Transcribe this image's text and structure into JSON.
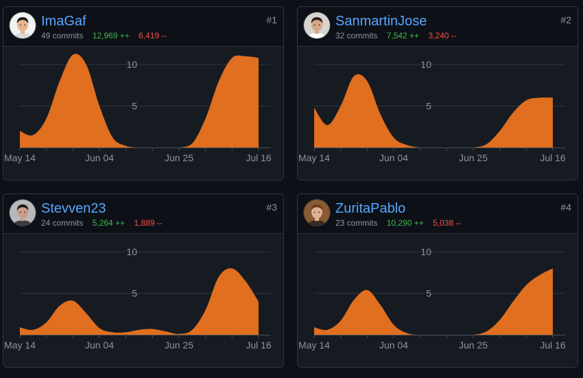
{
  "colors": {
    "area": "#e06f1f",
    "grid": "#30363d",
    "tick_text": "#8b949e",
    "axis": "#484f58"
  },
  "contributors": [
    {
      "username": "ImaGaf",
      "commits": "49 commits",
      "additions": "12,969 ++",
      "deletions": "6,419 --",
      "rank": "#1",
      "avatar_icon": "user-avatar-icon",
      "avatar_palette": {
        "bg": "#f2f2f2",
        "skin": "#e8b48f",
        "hair": "#1b1b1b",
        "shirt": "#d9d9d9"
      }
    },
    {
      "username": "SanmartinJose",
      "commits": "32 commits",
      "additions": "7,542 ++",
      "deletions": "3,240 --",
      "rank": "#2",
      "avatar_icon": "user-avatar-icon",
      "avatar_palette": {
        "bg": "#d8d4cf",
        "skin": "#d7a684",
        "hair": "#2a1f1a",
        "shirt": "#ffffff"
      }
    },
    {
      "username": "Stevven23",
      "commits": "24 commits",
      "additions": "5,264 ++",
      "deletions": "1,889 --",
      "rank": "#3",
      "avatar_icon": "user-avatar-icon",
      "avatar_palette": {
        "bg": "#b9b9bd",
        "skin": "#c9a088",
        "hair": "#1e1a1a",
        "shirt": "#3a3a3f"
      }
    },
    {
      "username": "ZuritaPablo",
      "commits": "23 commits",
      "additions": "10,290 ++",
      "deletions": "5,038 --",
      "rank": "#4",
      "avatar_icon": "user-avatar-icon",
      "avatar_palette": {
        "bg": "#8a5a33",
        "skin": "#dcb093",
        "hair": "#6b3d1f",
        "shirt": "#3b2a20"
      }
    }
  ],
  "chart_data": [
    {
      "type": "area",
      "series_of": "ImaGaf",
      "x_ticks": [
        "May 14",
        "Jun 04",
        "Jun 25",
        "Jul 16"
      ],
      "y_ticks": [
        5,
        10
      ],
      "ylim": [
        0,
        11
      ],
      "grid": true,
      "x": [
        "May 14",
        "May 17",
        "May 21",
        "May 24",
        "May 28",
        "May 31",
        "Jun 04",
        "Jun 07",
        "Jun 11",
        "Jun 14",
        "Jun 18",
        "Jun 21",
        "Jun 25",
        "Jun 28",
        "Jul 02",
        "Jul 05",
        "Jul 09",
        "Jul 12",
        "Jul 16"
      ],
      "values": [
        2.0,
        1.5,
        3.5,
        8.0,
        11.2,
        10.0,
        5.0,
        1.2,
        0.2,
        0.0,
        0.0,
        0.0,
        0.0,
        0.5,
        3.5,
        8.0,
        10.8,
        11.0,
        10.8
      ]
    },
    {
      "type": "area",
      "series_of": "SanmartinJose",
      "x_ticks": [
        "May 14",
        "Jun 04",
        "Jun 25",
        "Jul 16"
      ],
      "y_ticks": [
        5,
        10
      ],
      "ylim": [
        0,
        11
      ],
      "grid": true,
      "x": [
        "May 14",
        "May 17",
        "May 21",
        "May 24",
        "May 28",
        "May 31",
        "Jun 04",
        "Jun 07",
        "Jun 11",
        "Jun 14",
        "Jun 18",
        "Jun 21",
        "Jun 25",
        "Jun 28",
        "Jul 02",
        "Jul 05",
        "Jul 09",
        "Jul 12",
        "Jul 16"
      ],
      "values": [
        4.8,
        2.7,
        5.0,
        8.6,
        8.0,
        4.0,
        1.2,
        0.3,
        0.0,
        0.0,
        0.0,
        0.0,
        0.0,
        0.4,
        2.0,
        4.2,
        5.7,
        6.0,
        6.0
      ]
    },
    {
      "type": "area",
      "series_of": "Stevven23",
      "x_ticks": [
        "May 14",
        "Jun 04",
        "Jun 25",
        "Jul 16"
      ],
      "y_ticks": [
        5,
        10
      ],
      "ylim": [
        0,
        11
      ],
      "grid": true,
      "x": [
        "May 14",
        "May 17",
        "May 21",
        "May 24",
        "May 28",
        "May 31",
        "Jun 04",
        "Jun 07",
        "Jun 11",
        "Jun 14",
        "Jun 18",
        "Jun 21",
        "Jun 25",
        "Jun 28",
        "Jul 02",
        "Jul 05",
        "Jul 09",
        "Jul 12",
        "Jul 16"
      ],
      "values": [
        0.9,
        0.6,
        1.5,
        3.5,
        4.1,
        2.6,
        0.8,
        0.3,
        0.3,
        0.6,
        0.7,
        0.4,
        0.1,
        0.6,
        3.0,
        7.0,
        8.0,
        6.5,
        4.0
      ]
    },
    {
      "type": "area",
      "series_of": "ZuritaPablo",
      "x_ticks": [
        "May 14",
        "Jun 04",
        "Jun 25",
        "Jul 16"
      ],
      "y_ticks": [
        5,
        10
      ],
      "ylim": [
        0,
        11
      ],
      "grid": true,
      "x": [
        "May 14",
        "May 17",
        "May 21",
        "May 24",
        "May 28",
        "May 31",
        "Jun 04",
        "Jun 07",
        "Jun 11",
        "Jun 14",
        "Jun 18",
        "Jun 21",
        "Jun 25",
        "Jun 28",
        "Jul 02",
        "Jul 05",
        "Jul 09",
        "Jul 12",
        "Jul 16"
      ],
      "values": [
        0.9,
        0.6,
        1.7,
        4.2,
        5.4,
        3.6,
        1.2,
        0.2,
        0.0,
        0.0,
        0.0,
        0.0,
        0.0,
        0.4,
        1.8,
        4.0,
        6.0,
        7.2,
        8.0
      ]
    }
  ]
}
